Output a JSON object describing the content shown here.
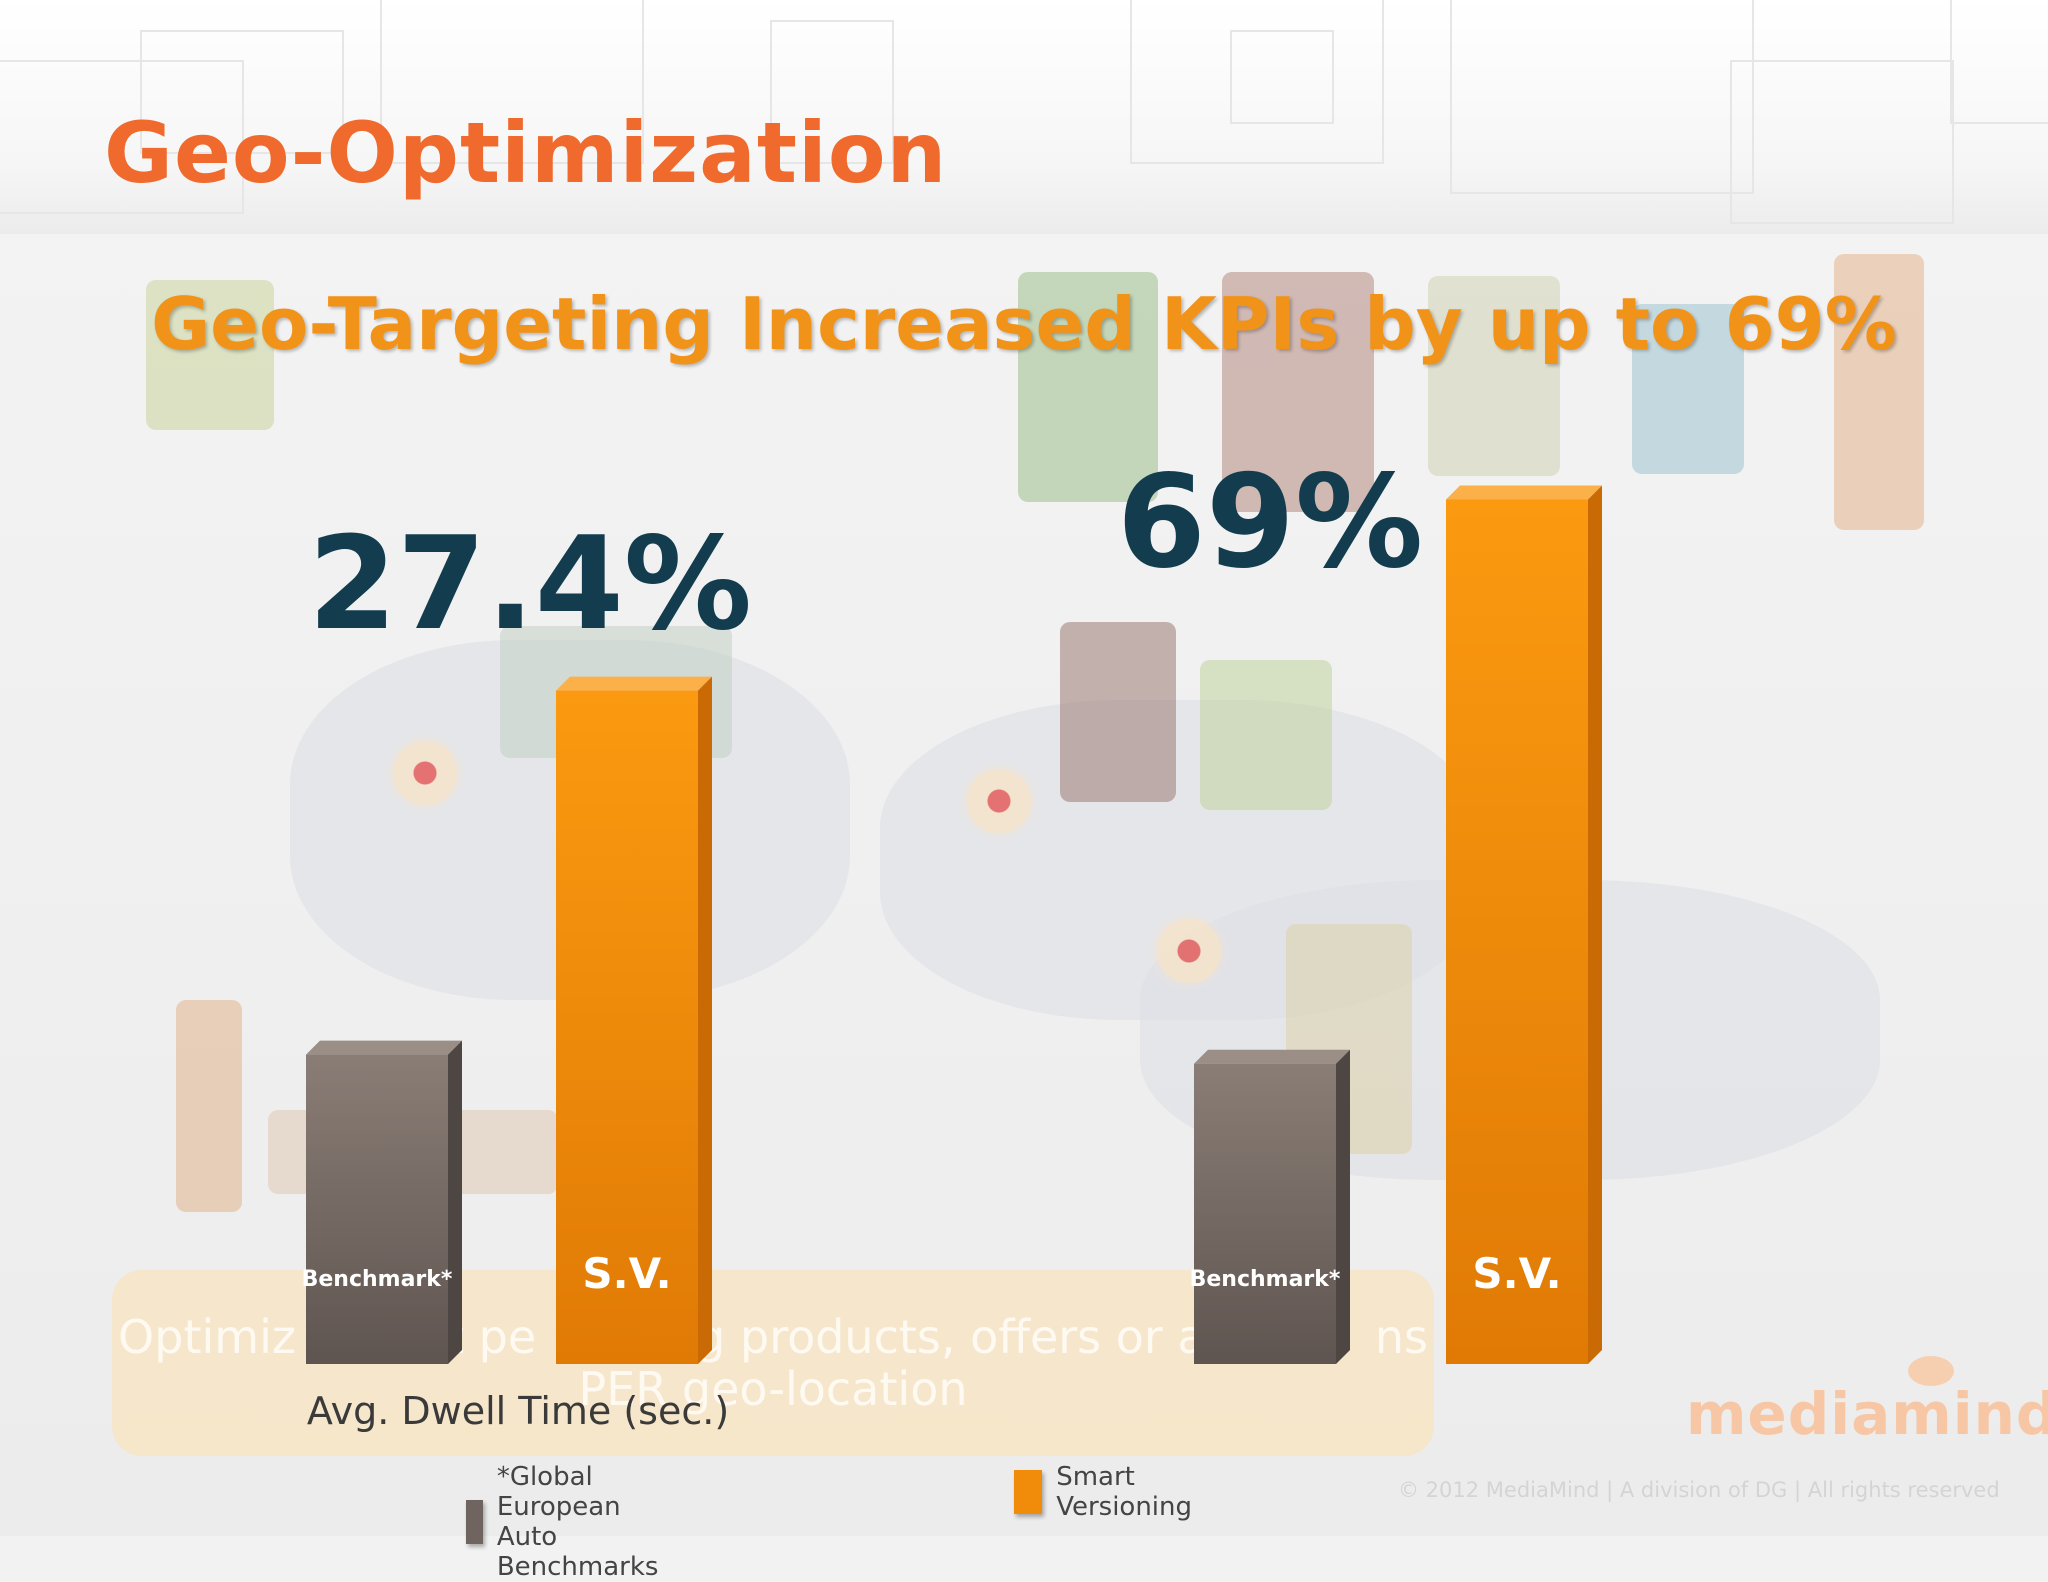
{
  "slide_title": "Geo-Optimization",
  "headline": "Geo-Targeting Increased KPIs by up to 69%",
  "callout": {
    "line1_a": "Optimiz",
    "line1_b": "t pe",
    "line1_c": "g products, offers or ad",
    "line1_d": "ns",
    "line2": "PER geo-location"
  },
  "chart_data": [
    {
      "type": "bar",
      "xlabel": "Avg. Dwell Time (sec.)",
      "categories": [
        "Benchmark*",
        "S.V."
      ],
      "values": [
        0.34,
        0.74
      ],
      "annotation": "27.4%"
    },
    {
      "type": "bar",
      "xlabel": "",
      "categories": [
        "Benchmark*",
        "S.V."
      ],
      "values": [
        0.33,
        0.95
      ],
      "annotation": "69%"
    }
  ],
  "legend": [
    {
      "label": "*Global European Auto Benchmarks",
      "color": "#6f645f"
    },
    {
      "label": "Smart Versioning",
      "color": "#f08c0a"
    }
  ],
  "colors": {
    "benchmark": "#6f645f",
    "sv": "#f08c0a",
    "title": "#ef6a2c",
    "headline": "#f29319",
    "annotation": "#133d4e"
  },
  "footer": {
    "copyright": "© 2012 MediaMind | A division of DG | All rights reserved",
    "logo": "mediamind"
  }
}
